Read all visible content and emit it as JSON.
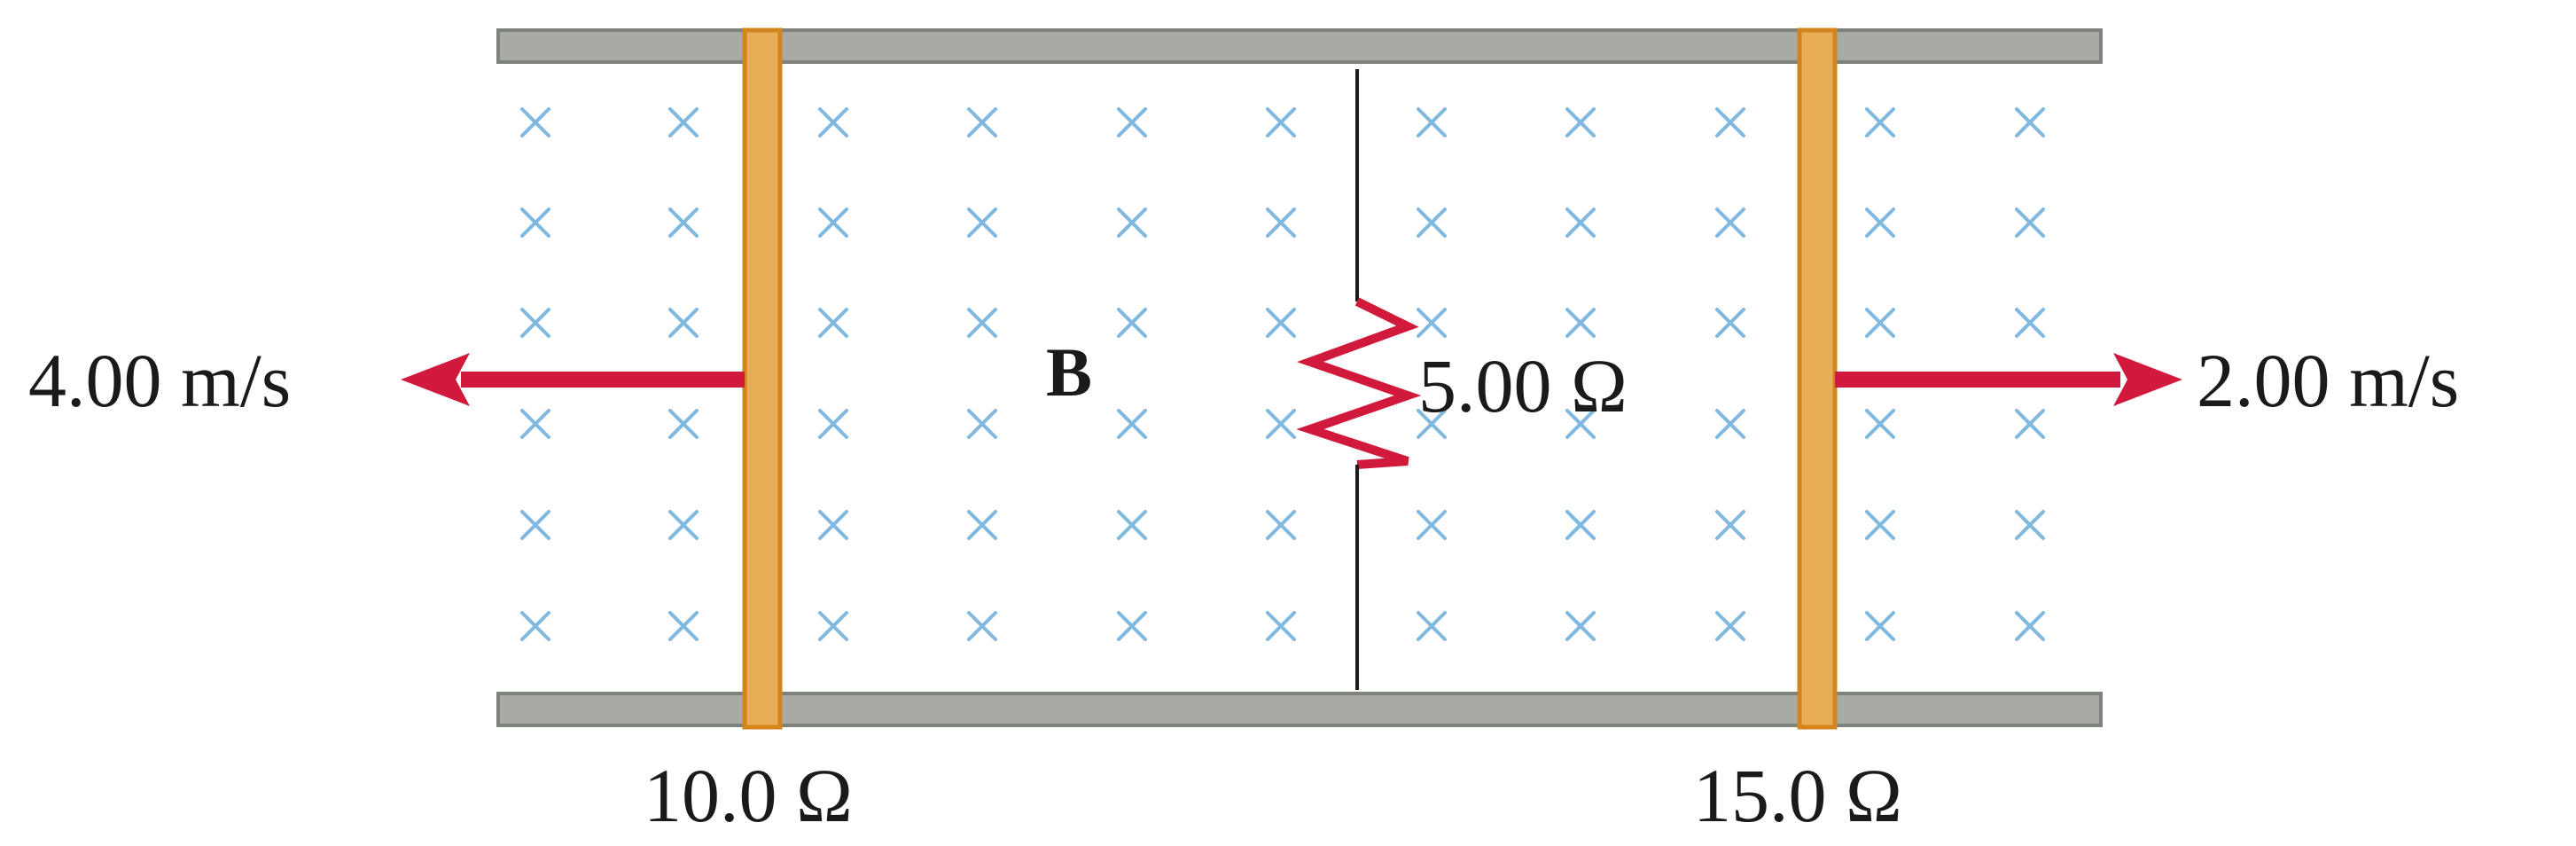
{
  "labels": {
    "left_velocity": "4.00 m/s",
    "right_velocity": "2.00 m/s",
    "field": "B",
    "center_resistor": "5.00 Ω",
    "left_bar_resistance": "10.0 Ω",
    "right_bar_resistance": "15.0 Ω"
  },
  "colors": {
    "rail": "#a7aba3",
    "rail_border": "#7d827a",
    "bar_fill": "#e8ad56",
    "bar_border": "#d4841c",
    "arrow": "#d11a3b",
    "resistor": "#d11a3b",
    "field_cross": "#7fb8e0",
    "wire": "#1a1a1a"
  },
  "field": {
    "symbol": "×",
    "direction": "into-page",
    "rows": 6,
    "columns": 11
  }
}
